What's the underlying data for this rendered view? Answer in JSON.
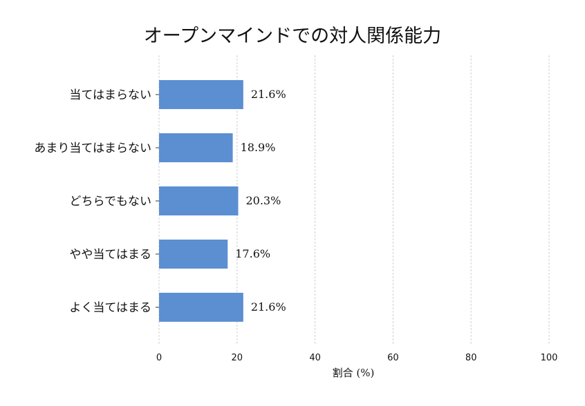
{
  "chart_data": {
    "type": "bar",
    "orientation": "horizontal",
    "title": "オープンマインドでの対人関係能力",
    "xlabel": "割合 (%)",
    "ylabel": "",
    "categories": [
      "当てはまらない",
      "あまり当てはまらない",
      "どちらでもない",
      "やや当てはまる",
      "よく当てはまる"
    ],
    "values": [
      21.6,
      18.9,
      20.3,
      17.6,
      21.6
    ],
    "value_labels": [
      "21.6%",
      "18.9%",
      "20.3%",
      "17.6%",
      "21.6%"
    ],
    "xlim": [
      0,
      100
    ],
    "xticks": [
      0,
      20,
      40,
      60,
      80,
      100
    ],
    "xtick_labels": [
      "0",
      "20",
      "40",
      "60",
      "80",
      "100"
    ],
    "grid": "vertical dashed",
    "bar_color": "#5b8fd1"
  }
}
